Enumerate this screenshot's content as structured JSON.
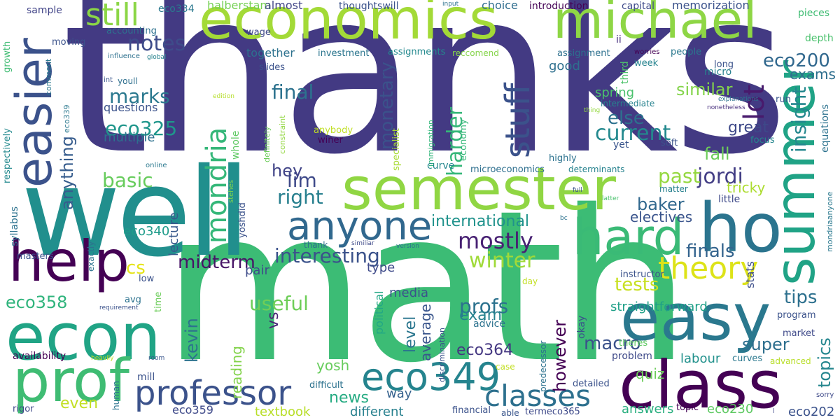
{
  "cloud": {
    "words": [
      {
        "t": "thanks",
        "c": "#433a83"
      },
      {
        "t": "math",
        "c": "#3cbc75"
      },
      {
        "t": "well",
        "c": "#218f8d"
      },
      {
        "t": "economics",
        "c": "#a3da37"
      },
      {
        "t": "michael",
        "c": "#8ed645"
      },
      {
        "t": "semester",
        "c": "#90d643"
      },
      {
        "t": "easy",
        "c": "#2a788e"
      },
      {
        "t": "class",
        "c": "#440154"
      },
      {
        "t": "econ",
        "c": "#20a485"
      },
      {
        "t": "prof",
        "c": "#3fbc73"
      },
      {
        "t": "help",
        "c": "#440154"
      },
      {
        "t": "easier",
        "c": "#3b528b"
      },
      {
        "t": "summer",
        "c": "#20a386"
      },
      {
        "t": "ho",
        "c": "#2b748e"
      },
      {
        "t": "hard",
        "c": "#3aba76"
      },
      {
        "t": "anyone",
        "c": "#31688e"
      },
      {
        "t": "professor",
        "c": "#3b528b"
      },
      {
        "t": "eco349",
        "c": "#25848e"
      },
      {
        "t": "classes",
        "c": "#2d708e"
      },
      {
        "t": "theory",
        "c": "#dde318"
      },
      {
        "t": "stuff",
        "c": "#3b528b"
      },
      {
        "t": "still",
        "c": "#8bd646"
      },
      {
        "t": "mondria",
        "c": "#35b779"
      },
      {
        "t": "lot",
        "c": "#481a6c"
      },
      {
        "t": "notes",
        "c": "#3e4c8a"
      },
      {
        "t": "eco200",
        "c": "#31688e"
      },
      {
        "t": "exams",
        "c": "#2e6e8e"
      },
      {
        "t": "final",
        "c": "#2c728e"
      },
      {
        "t": "marks",
        "c": "#2a788e"
      },
      {
        "t": "eco325",
        "c": "#1f968b"
      },
      {
        "t": "current",
        "c": "#23898e"
      },
      {
        "t": "else",
        "c": "#2d718e"
      },
      {
        "t": "similar",
        "c": "#84d44b"
      },
      {
        "t": "insight",
        "c": "#24878e"
      },
      {
        "t": "jordi",
        "c": "#433e85"
      },
      {
        "t": "great",
        "c": "#3e4989"
      },
      {
        "t": "monetary",
        "c": "#3b528b"
      },
      {
        "t": "harder",
        "c": "#35b779"
      },
      {
        "t": "anything",
        "c": "#365c8d"
      },
      {
        "t": "basic",
        "c": "#67cc5c"
      },
      {
        "t": "lim",
        "c": "#3e4989"
      },
      {
        "t": "right",
        "c": "#277f8e"
      },
      {
        "t": "hey",
        "c": "#414487"
      },
      {
        "t": "past",
        "c": "#95d840"
      },
      {
        "t": "fall",
        "c": "#6ccd5a"
      },
      {
        "t": "baker",
        "c": "#31688e"
      },
      {
        "t": "tricky",
        "c": "#addc30"
      },
      {
        "t": "international",
        "c": "#20928c"
      },
      {
        "t": "electives",
        "c": "#3a548c"
      },
      {
        "t": "mostly",
        "c": "#482173"
      },
      {
        "t": "interesting",
        "c": "#3b528b"
      },
      {
        "t": "midterm",
        "c": "#481467"
      },
      {
        "t": "winter",
        "c": "#a0da39"
      },
      {
        "t": "finals",
        "c": "#33638d"
      },
      {
        "t": "tests",
        "c": "#c8e020"
      },
      {
        "t": "cs",
        "c": "#e5e419"
      },
      {
        "t": "tips",
        "c": "#2d708e"
      },
      {
        "t": "eco358",
        "c": "#2fb47c"
      },
      {
        "t": "useful",
        "c": "#6ece58"
      },
      {
        "t": "profs",
        "c": "#2c728e"
      },
      {
        "t": "exam",
        "c": "#26828e"
      },
      {
        "t": "macro",
        "c": "#3b528b"
      },
      {
        "t": "super",
        "c": "#2e6f8e"
      },
      {
        "t": "topics",
        "c": "#24868e"
      },
      {
        "t": "eco364",
        "c": "#453882"
      },
      {
        "t": "news",
        "c": "#25ab82"
      },
      {
        "t": "even",
        "c": "#c2df23"
      },
      {
        "t": "vs",
        "c": "#482576"
      },
      {
        "t": "kevin",
        "c": "#2c728e"
      },
      {
        "t": "level",
        "c": "#2a768e"
      },
      {
        "t": "average",
        "c": "#39558c"
      },
      {
        "t": "however",
        "c": "#440154"
      },
      {
        "t": "reading",
        "c": "#83d34b"
      },
      {
        "t": "yosh",
        "c": "#67cc5c"
      },
      {
        "t": "eco340",
        "c": "#1e9b8a"
      },
      {
        "t": "lecture",
        "c": "#38598c"
      },
      {
        "t": "straightforward",
        "c": "#1fa088"
      },
      {
        "t": "stats",
        "c": "#3d4e8a"
      },
      {
        "t": "quiz",
        "c": "#6ccd5a"
      },
      {
        "t": "answers",
        "c": "#29af7f"
      },
      {
        "t": "eco230",
        "c": "#5ec962"
      },
      {
        "t": "eco202",
        "c": "#3b528b"
      },
      {
        "t": "labour",
        "c": "#21918c"
      },
      {
        "t": "textbook",
        "c": "#b8de29"
      },
      {
        "t": "different",
        "c": "#27808e"
      },
      {
        "t": "eco359",
        "c": "#3e4989"
      },
      {
        "t": "way",
        "c": "#34608d"
      },
      {
        "t": "media",
        "c": "#3b528b"
      },
      {
        "t": "type",
        "c": "#3e4a89"
      },
      {
        "t": "pair",
        "c": "#3e4c8a"
      },
      {
        "t": "political",
        "c": "#22a785"
      },
      {
        "t": "spring",
        "c": "#4ac16d"
      },
      {
        "t": "good",
        "c": "#2e6f8e"
      },
      {
        "t": "together",
        "c": "#2c718e"
      },
      {
        "t": "questions",
        "c": "#3b528b"
      },
      {
        "t": "multiple",
        "c": "#2d708e"
      },
      {
        "t": "sample",
        "c": "#404387"
      },
      {
        "t": "eco334",
        "c": "#2a788e"
      },
      {
        "t": "halberstam",
        "c": "#75d054"
      },
      {
        "t": "almost",
        "c": "#414487"
      },
      {
        "t": "thoughtswill",
        "c": "#3b528b"
      },
      {
        "t": "choice",
        "c": "#2e6d8e"
      },
      {
        "t": "introduction",
        "c": "#440154"
      },
      {
        "t": "capital",
        "c": "#3e4989"
      },
      {
        "t": "memorization",
        "c": "#3b528b"
      },
      {
        "t": "pieces",
        "c": "#3fbc73"
      },
      {
        "t": "accounting",
        "c": "#2d718e"
      },
      {
        "t": "wage",
        "c": "#3e4989"
      },
      {
        "t": "ii",
        "c": "#472e7c"
      },
      {
        "t": "moving",
        "c": "#3b528b"
      },
      {
        "t": "investment",
        "c": "#2b758e"
      },
      {
        "t": "assignments",
        "c": "#23898e"
      },
      {
        "t": "reccomend",
        "c": "#85d44a"
      },
      {
        "t": "assignment",
        "c": "#2d708e"
      },
      {
        "t": "third",
        "c": "#4ec36b"
      },
      {
        "t": "worries",
        "c": "#440154"
      },
      {
        "t": "people",
        "c": "#2a788e"
      },
      {
        "t": "depth",
        "c": "#4ac16d"
      },
      {
        "t": "growth",
        "c": "#3fbc73"
      },
      {
        "t": "influence",
        "c": "#2d708e"
      },
      {
        "t": "global",
        "c": "#26828e"
      },
      {
        "t": "int",
        "c": "#39558c"
      },
      {
        "t": "comment",
        "c": "#2a788e"
      },
      {
        "t": "eco339",
        "c": "#2a788e"
      },
      {
        "t": "respectively",
        "c": "#23898e"
      },
      {
        "t": "micro",
        "c": "#27808e"
      },
      {
        "t": "long",
        "c": "#3b528b"
      },
      {
        "t": "week",
        "c": "#25838e"
      },
      {
        "t": "slides",
        "c": "#3b528b"
      },
      {
        "t": "youll",
        "c": "#2e6f8e"
      },
      {
        "t": "intermediate",
        "c": "#26828e"
      },
      {
        "t": "thing",
        "c": "#95d840"
      },
      {
        "t": "explanations",
        "c": "#2c728e"
      },
      {
        "t": "nonetheless",
        "c": "#472f7d"
      },
      {
        "t": "run",
        "c": "#39568c"
      },
      {
        "t": "equations",
        "c": "#2c728e"
      },
      {
        "t": "edition",
        "c": "#b5de2b"
      },
      {
        "t": "constraint",
        "c": "#93d741"
      },
      {
        "t": "definitely",
        "c": "#6ccd5a"
      },
      {
        "t": "whole",
        "c": "#5ec962"
      },
      {
        "t": "specialist",
        "c": "#a8db34"
      },
      {
        "t": "immigration",
        "c": "#32b67a"
      },
      {
        "t": "economy",
        "c": "#35b779"
      },
      {
        "t": "anybody",
        "c": "#c0df25"
      },
      {
        "t": "winer",
        "c": "#440154"
      },
      {
        "t": "curve",
        "c": "#24868e"
      },
      {
        "t": "yet",
        "c": "#39558c"
      },
      {
        "t": "soft",
        "c": "#3b528b"
      },
      {
        "t": "focus",
        "c": "#24868e"
      },
      {
        "t": "highly",
        "c": "#2c728e"
      },
      {
        "t": "microeconomics",
        "c": "#2e6f8e"
      },
      {
        "t": "determinants",
        "c": "#26828e"
      },
      {
        "t": "online",
        "c": "#2a788e"
      },
      {
        "t": "stehes",
        "c": "#7fd34e"
      },
      {
        "t": "yoshdid",
        "c": "#3b528b"
      },
      {
        "t": "matter",
        "c": "#27808e"
      },
      {
        "t": "full",
        "c": "#3b528b"
      },
      {
        "t": "latter",
        "c": "#4ac16d"
      },
      {
        "t": "little",
        "c": "#3e4989"
      },
      {
        "t": "mondriaanyone",
        "c": "#2a788e"
      },
      {
        "t": "syllabus",
        "c": "#2c728e"
      },
      {
        "t": "masters",
        "c": "#3b528b"
      },
      {
        "t": "exactly",
        "c": "#2c728e"
      },
      {
        "t": "low",
        "c": "#3b528b"
      },
      {
        "t": "avg",
        "c": "#2c728e"
      },
      {
        "t": "requirement",
        "c": "#3b528b"
      },
      {
        "t": "time",
        "c": "#6ccd5a"
      },
      {
        "t": "thank",
        "c": "#2e6f8e"
      },
      {
        "t": "similiar",
        "c": "#3e4989"
      },
      {
        "t": "version",
        "c": "#2c728e"
      },
      {
        "t": "bc",
        "c": "#2c728e"
      },
      {
        "t": "instructor",
        "c": "#3b528b"
      },
      {
        "t": "day",
        "c": "#c2df23"
      },
      {
        "t": "program",
        "c": "#3b528b"
      },
      {
        "t": "advice",
        "c": "#2c728e"
      },
      {
        "t": "okay",
        "c": "#3b528b"
      },
      {
        "t": "market",
        "c": "#3e4989"
      },
      {
        "t": "theres",
        "c": "#5ec962"
      },
      {
        "t": "advanced",
        "c": "#b8de29"
      },
      {
        "t": "predecessor",
        "c": "#2c728e"
      },
      {
        "t": "problem",
        "c": "#3e4989"
      },
      {
        "t": "curves",
        "c": "#2a788e"
      },
      {
        "t": "detailed",
        "c": "#3b528b"
      },
      {
        "t": "availability",
        "c": "#440154"
      },
      {
        "t": "heavily",
        "c": "#c0df25"
      },
      {
        "t": "room",
        "c": "#39558c"
      },
      {
        "t": "mill",
        "c": "#3b528b"
      },
      {
        "t": "human",
        "c": "#2c728e"
      },
      {
        "t": "discrimination",
        "c": "#3b528b"
      },
      {
        "t": "case",
        "c": "#c2df23"
      },
      {
        "t": "difficult",
        "c": "#2c728e"
      },
      {
        "t": "rigor",
        "c": "#3e4989"
      },
      {
        "t": "financial",
        "c": "#3b528b"
      },
      {
        "t": "able",
        "c": "#39558c"
      },
      {
        "t": "termeco365",
        "c": "#3e4989"
      },
      {
        "t": "topic",
        "c": "#440154"
      },
      {
        "t": "sorry",
        "c": "#3e4989"
      },
      {
        "t": "l",
        "c": "#3e4989"
      },
      {
        "t": "input",
        "c": "#2c728e"
      }
    ]
  }
}
